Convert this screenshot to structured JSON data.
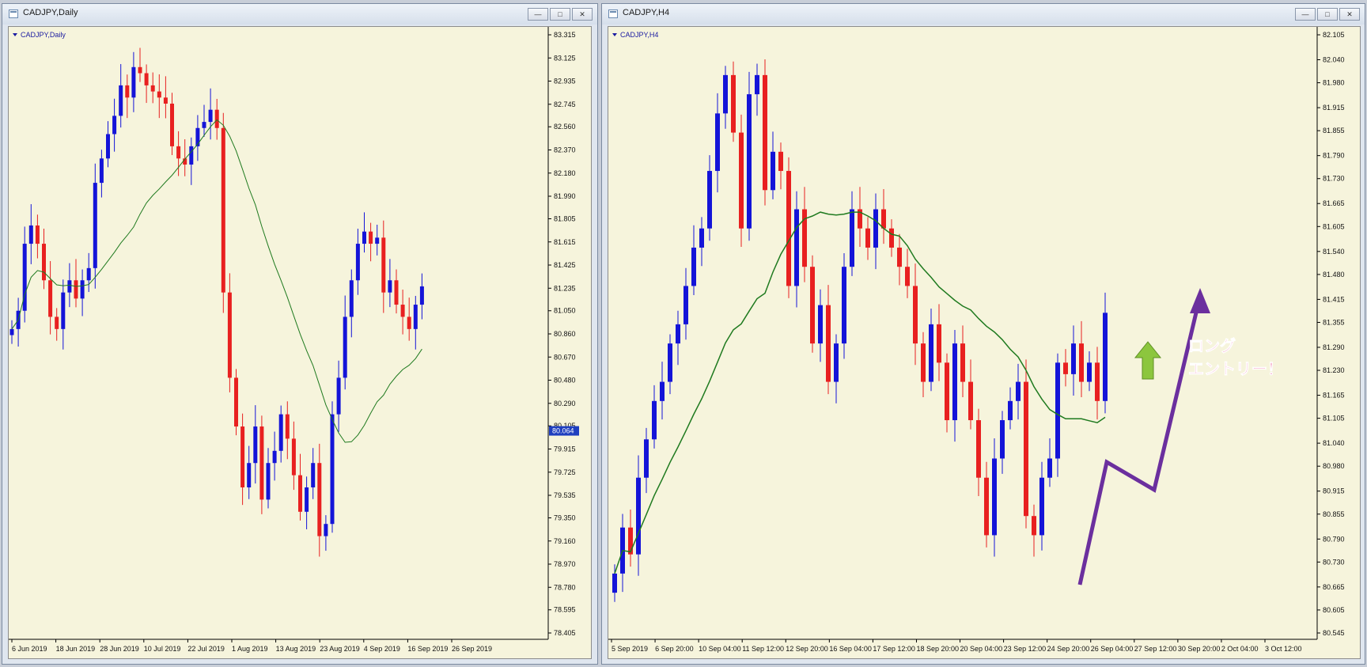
{
  "left_window": {
    "title": "CADJPY,Daily",
    "chart_label": "CADJPY,Daily",
    "buttons": [
      "minimize",
      "maximize",
      "close"
    ]
  },
  "right_window": {
    "title": "CADJPY,H4",
    "chart_label": "CADJPY,H4",
    "buttons": [
      "minimize",
      "maximize",
      "close"
    ]
  },
  "annotation": {
    "line1": "ロング",
    "line2": "エントリー！"
  },
  "colors": {
    "background": "#f6f4dc",
    "bull_candle": "#1414d8",
    "bear_candle": "#e82020",
    "ma_line": "#1f7a1f",
    "arrow_purple": "#6b2f9e",
    "arrow_green": "#8cc63e",
    "annotation_text": "#e8216e",
    "price_tag": "#1f3fbf"
  },
  "chart_data": [
    {
      "type": "candlestick",
      "symbol": "CADJPY",
      "timeframe": "Daily",
      "y_ticks": [
        "83.315",
        "83.125",
        "82.935",
        "82.745",
        "82.560",
        "82.370",
        "82.180",
        "81.990",
        "81.805",
        "81.615",
        "81.425",
        "81.235",
        "81.050",
        "80.860",
        "80.670",
        "80.480",
        "80.290",
        "80.105",
        "79.915",
        "79.725",
        "79.535",
        "79.350",
        "79.160",
        "78.970",
        "78.780",
        "78.595",
        "78.405"
      ],
      "ylim": [
        78.405,
        83.315
      ],
      "x_ticks": [
        "6 Jun 2019",
        "18 Jun 2019",
        "28 Jun 2019",
        "10 Jul 2019",
        "22 Jul 2019",
        "1 Aug 2019",
        "13 Aug 2019",
        "23 Aug 2019",
        "4 Sep 2019",
        "16 Sep 2019",
        "26 Sep 2019"
      ],
      "current_price": "80.064",
      "closes": [
        80.9,
        81.05,
        81.6,
        81.75,
        81.6,
        81.3,
        81.0,
        80.9,
        81.2,
        81.3,
        81.15,
        81.3,
        81.4,
        82.1,
        82.3,
        82.5,
        82.65,
        82.9,
        82.8,
        83.05,
        83.0,
        82.9,
        82.85,
        82.8,
        82.75,
        82.4,
        82.3,
        82.25,
        82.4,
        82.55,
        82.6,
        82.7,
        82.55,
        81.2,
        80.5,
        80.1,
        79.6,
        79.8,
        80.1,
        79.5,
        79.8,
        79.9,
        80.2,
        80.0,
        79.7,
        79.4,
        79.6,
        79.8,
        79.2,
        79.3,
        80.2,
        80.5,
        81.0,
        81.3,
        81.6,
        81.7,
        81.6,
        81.65,
        81.2,
        81.3,
        81.1,
        81.0,
        80.9,
        81.1,
        81.25
      ],
      "ma_period": 20
    },
    {
      "type": "candlestick",
      "symbol": "CADJPY",
      "timeframe": "H4",
      "y_ticks": [
        "82.105",
        "82.040",
        "81.980",
        "81.915",
        "81.855",
        "81.790",
        "81.730",
        "81.665",
        "81.605",
        "81.540",
        "81.480",
        "81.415",
        "81.355",
        "81.290",
        "81.230",
        "81.165",
        "81.105",
        "81.040",
        "80.980",
        "80.915",
        "80.855",
        "80.790",
        "80.730",
        "80.665",
        "80.605",
        "80.545"
      ],
      "ylim": [
        80.545,
        82.105
      ],
      "x_ticks": [
        "5 Sep 2019",
        "6 Sep 20:00",
        "10 Sep 04:00",
        "11 Sep 12:00",
        "12 Sep 20:00",
        "16 Sep 04:00",
        "17 Sep 12:00",
        "18 Sep 20:00",
        "20 Sep 04:00",
        "23 Sep 12:00",
        "24 Sep 20:00",
        "26 Sep 04:00",
        "27 Sep 12:00",
        "30 Sep 20:00",
        "2 Oct 04:00",
        "3 Oct 12:00"
      ],
      "closes": [
        80.7,
        80.82,
        80.75,
        80.95,
        81.05,
        81.15,
        81.2,
        81.3,
        81.35,
        81.45,
        81.55,
        81.6,
        81.75,
        81.9,
        82.0,
        81.85,
        81.6,
        81.95,
        82.0,
        81.7,
        81.8,
        81.75,
        81.45,
        81.65,
        81.5,
        81.3,
        81.4,
        81.2,
        81.3,
        81.5,
        81.65,
        81.6,
        81.55,
        81.65,
        81.6,
        81.55,
        81.5,
        81.45,
        81.3,
        81.2,
        81.35,
        81.25,
        81.1,
        81.3,
        81.2,
        81.1,
        80.95,
        80.8,
        81.0,
        81.1,
        81.15,
        81.2,
        80.85,
        80.8,
        80.95,
        81.0,
        81.25,
        81.22,
        81.3,
        81.2,
        81.25,
        81.15,
        81.38
      ],
      "ma_period": 20
    }
  ]
}
